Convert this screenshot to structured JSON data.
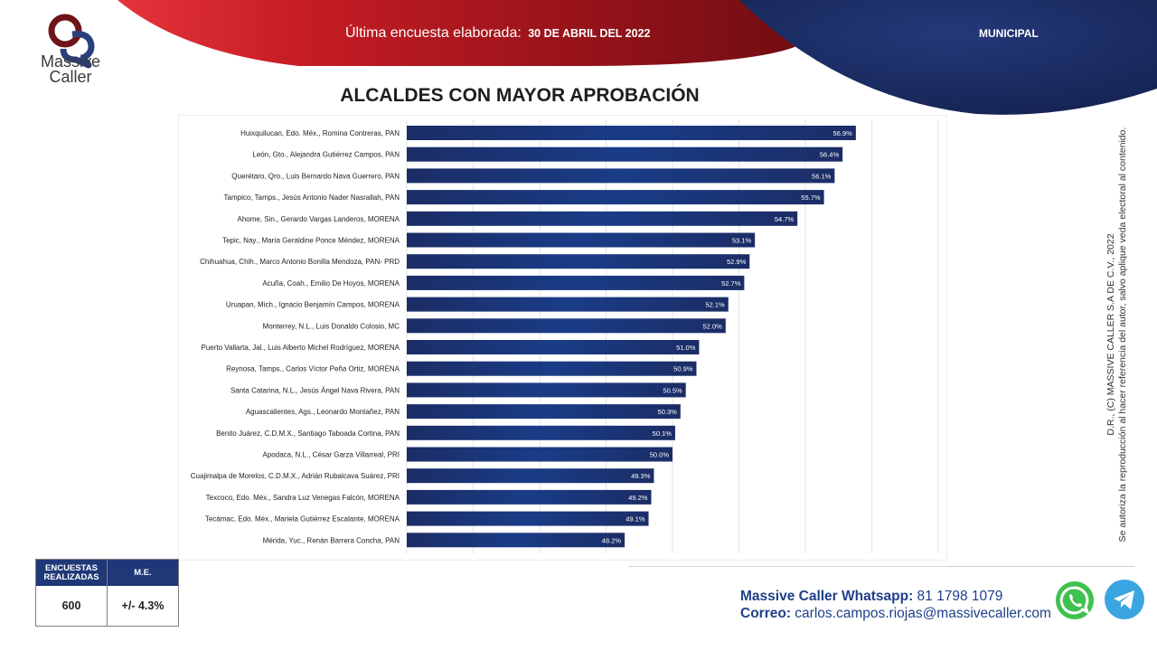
{
  "brand": {
    "name_line1": "Massive",
    "name_line2": "Caller"
  },
  "header": {
    "survey_label": "Última encuesta elaborada:",
    "survey_date": "30 DE ABRIL DEL 2022",
    "scope": "MUNICIPAL",
    "colors": {
      "red": "#b0141c",
      "navy": "#1b2c64"
    }
  },
  "chart_data": {
    "type": "bar",
    "orientation": "horizontal",
    "title": "ALCALDES CON MAYOR APROBACIÓN",
    "xlim": [
      40,
      60
    ],
    "grid": true,
    "bar_color": "#1a3c87",
    "categories": [
      "Huixquilucan, Edo. Méx., Romina Contreras, PAN",
      "León, Gto., Alejandra Gutiérrez Campos, PAN",
      "Querétaro, Qro., Luis Bernardo Nava Guerrero, PAN",
      "Tampico, Tamps., Jesús Antonio Nader Nasrallah, PAN",
      "Ahome, Sin., Gerardo Vargas Landeros, MORENA",
      "Tepic, Nay., María Geraldine Ponce Méndez, MORENA",
      "Chihuahua, Chih., Marco Antonio Bonilla Mendoza, PAN- PRD",
      "Acuña, Coah., Emilio De Hoyos, MORENA",
      "Uruapan, Mich., Ignacio Benjamín Campos, MORENA",
      "Monterrey, N.L., Luis Donaldo Colosio, MC",
      "Puerto Vallarta, Jal., Luis Alberto Michel Rodríguez, MORENA",
      "Reynosa, Tamps., Carlos Víctor Peña Ortiz, MORENA",
      "Santa Catarina, N.L., Jesús Ángel Nava Rivera, PAN",
      "Aguascalientes, Ags., Leonardo Montañez, PAN",
      "Benito Juárez, C.D.M.X., Santiago Taboada Cortina, PAN",
      "Apodaca, N.L., César Garza Villarreal, PRI",
      "Cuajimalpa de Morelos, C.D.M.X., Adrián Rubalcava Suárez, PRI",
      "Texcoco, Edo. Méx., Sandra Luz Venegas Falcón, MORENA",
      "Tecámac, Edo. Méx., Mariela Gutiérrez Escalante, MORENA",
      "Mérida, Yuc., Renán Barrera Concha, PAN"
    ],
    "values": [
      56.9,
      56.4,
      56.1,
      55.7,
      54.7,
      53.1,
      52.9,
      52.7,
      52.1,
      52.0,
      51.0,
      50.9,
      50.5,
      50.3,
      50.1,
      50.0,
      49.3,
      49.2,
      49.1,
      48.2
    ],
    "value_labels": [
      "56.9%",
      "56.4%",
      "56.1%",
      "55.7%",
      "54.7%",
      "53.1%",
      "52.9%",
      "52.7%",
      "52.1%",
      "52.0%",
      "51.0%",
      "50.9%",
      "50.5%",
      "50.3%",
      "50.1%",
      "50.0%",
      "49.3%",
      "49.2%",
      "49.1%",
      "48.2%"
    ]
  },
  "stats": {
    "surveys_label": "ENCUESTAS REALIZADAS",
    "surveys_value": "600",
    "me_label": "M.E.",
    "me_value": "+/- 4.3%"
  },
  "contact": {
    "whatsapp_label": "Massive Caller Whatsapp:",
    "whatsapp_value": "81 1798 1079",
    "email_label": "Correo:",
    "email_value": "carlos.campos.riojas@massivecaller.com",
    "whatsapp_icon": "whatsapp-icon",
    "telegram_icon": "telegram-icon"
  },
  "legal": {
    "line1": "D.R., (C) MASSIVE CALLER S.A DE C.V., 2022",
    "line2": "Se autoriza la reproducción al hacer referencia del autor, salvo aplique veda electoral al contenido."
  }
}
